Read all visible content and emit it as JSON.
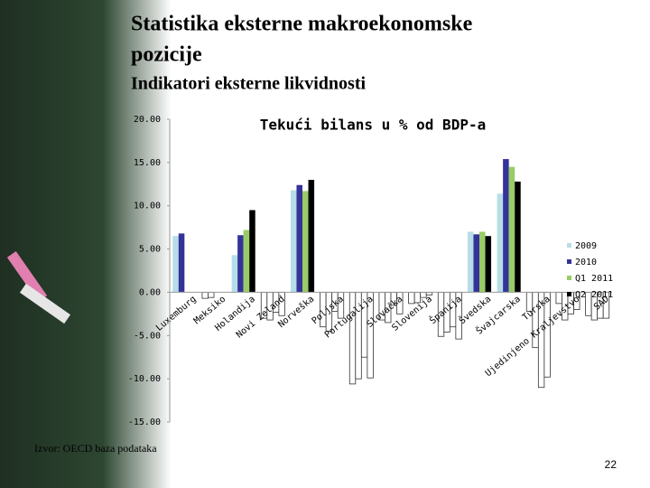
{
  "header": {
    "title_lines": [
      "Statistika eksterne makroekonomske",
      "pozicije"
    ],
    "subtitle": "Indikatori eksterne likvidnosti"
  },
  "chart_data": {
    "type": "bar",
    "title": "Tekući bilans u % od BDP-a",
    "categories": [
      "Luxemburg",
      "Meksiko",
      "Holandija",
      "Novi Zeland",
      "Norveška",
      "Poljska",
      "Portugalija",
      "Slovačka",
      "Slovenija",
      "Španija",
      "Švedska",
      "Švajcarska",
      "Turska",
      "Ujedinjeno Kraljevstvo",
      "SAD"
    ],
    "series": [
      {
        "name": "2009",
        "color": "#b7dee8",
        "values": [
          6.5,
          -0.7,
          4.3,
          -3.0,
          11.8,
          -4.0,
          -10.6,
          -3.2,
          -1.3,
          -5.1,
          7.0,
          11.4,
          -2.2,
          -1.3,
          -2.7
        ]
      },
      {
        "name": "2010",
        "color": "#333399",
        "values": [
          6.8,
          -0.6,
          6.6,
          -3.2,
          12.4,
          -4.5,
          -10.0,
          -3.5,
          -1.2,
          -4.6,
          6.7,
          15.4,
          -6.4,
          -3.2,
          -3.2
        ]
      },
      {
        "name": "Q1 2011",
        "color": "#99cc66",
        "values": [
          null,
          null,
          7.2,
          -2.3,
          11.7,
          -2.2,
          -7.5,
          -1.5,
          -0.6,
          -4.0,
          7.0,
          14.5,
          -11.0,
          -2.5,
          -3.0
        ]
      },
      {
        "name": "Q2 2011",
        "color": "#000000",
        "values": [
          null,
          null,
          9.5,
          -2.7,
          13.0,
          -3.0,
          -9.9,
          -2.5,
          -0.3,
          -5.4,
          6.5,
          12.8,
          -9.8,
          -2.0,
          -3.0
        ]
      }
    ],
    "ylim": [
      -15,
      20
    ],
    "yticks": [
      {
        "value": -15,
        "label": "-15.00"
      },
      {
        "value": -10,
        "label": "-10.00"
      },
      {
        "value": -5,
        "label": "-5.00"
      },
      {
        "value": 0,
        "label": "0.00"
      },
      {
        "value": 5,
        "label": "5.00"
      },
      {
        "value": 10,
        "label": "10.00"
      },
      {
        "value": 15,
        "label": "15.00"
      },
      {
        "value": 20,
        "label": "20.00"
      }
    ],
    "grid": false,
    "legend": "right",
    "invert_if_negative": true
  },
  "source": "Izvor: OECD baza podataka",
  "page_number": "22"
}
